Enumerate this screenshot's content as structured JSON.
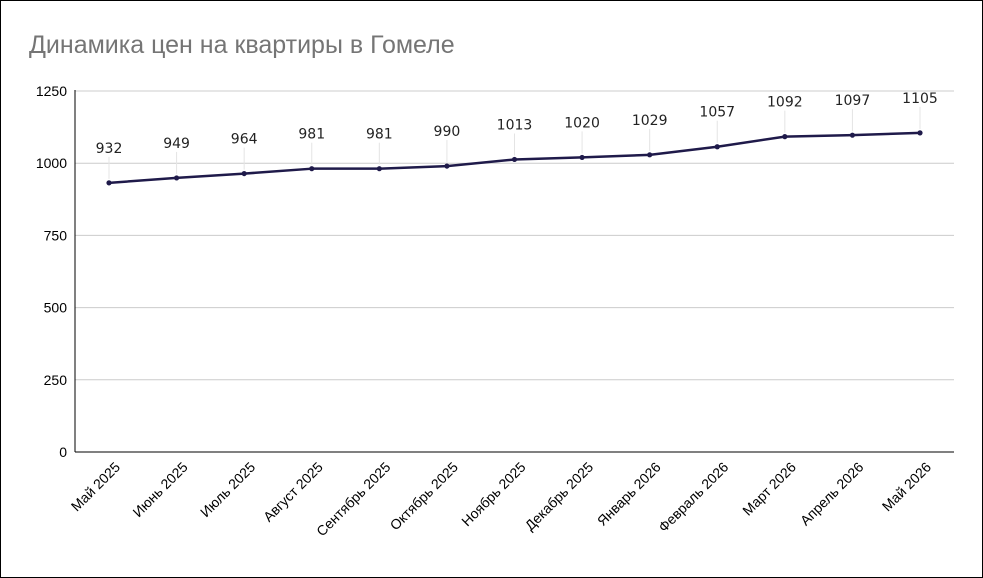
{
  "chart_data": {
    "type": "line",
    "title": "Динамика цен на квартиры в Гомеле",
    "xlabel": "",
    "ylabel": "",
    "categories": [
      "Май 2025",
      "Июнь 2025",
      "Июль 2025",
      "Август 2025",
      "Сентябрь 2025",
      "Октябрь 2025",
      "Ноябрь 2025",
      "Декабрь 2025",
      "Январь 2026",
      "Февраль 2026",
      "Март 2026",
      "Апрель 2026",
      "Май 2026"
    ],
    "series": [
      {
        "values": [
          932,
          949,
          964,
          981,
          981,
          990,
          1013,
          1020,
          1029,
          1057,
          1092,
          1097,
          1105
        ]
      }
    ],
    "ylim": [
      0,
      1250
    ],
    "yticks": [
      "0",
      "250",
      "500",
      "750",
      "1000",
      "1250"
    ],
    "grid": true,
    "legend": "none",
    "data_labels": true,
    "colors": {
      "line": "#1f1a4a",
      "grid": "#cccccc",
      "axis": "#000000",
      "title": "#757575"
    }
  }
}
